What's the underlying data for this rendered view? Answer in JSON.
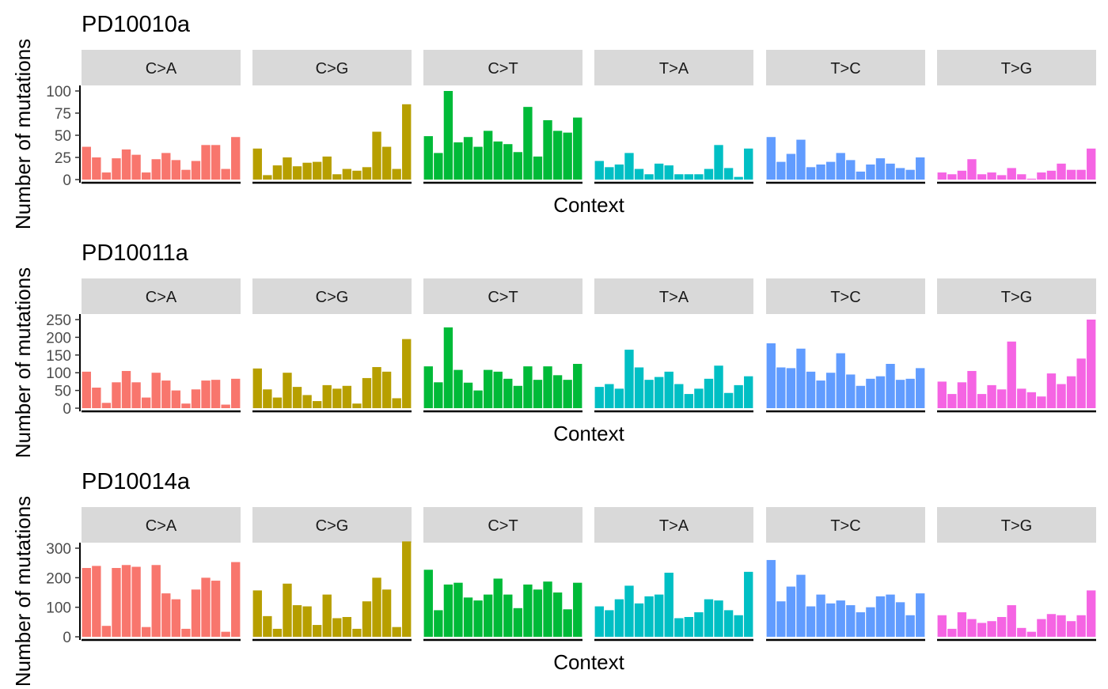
{
  "chart_data": [
    {
      "type": "bar",
      "title": "PD10010a",
      "xlabel": "Context",
      "ylabel": "Number of mutations",
      "ylim": [
        0,
        110
      ],
      "yticks": [
        0,
        25,
        50,
        75,
        100
      ],
      "grid": false,
      "legend": "none",
      "facets": [
        {
          "name": "C>A",
          "color": "#F8766D",
          "values": [
            37,
            25,
            8,
            24,
            34,
            28,
            8,
            23,
            30,
            22,
            11,
            21,
            39,
            39,
            12,
            48
          ]
        },
        {
          "name": "C>G",
          "color": "#B79F00",
          "values": [
            35,
            5,
            16,
            25,
            15,
            19,
            20,
            26,
            6,
            12,
            10,
            14,
            54,
            37,
            12,
            85
          ]
        },
        {
          "name": "C>T",
          "color": "#00BA38",
          "values": [
            49,
            30,
            100,
            42,
            48,
            37,
            55,
            43,
            40,
            31,
            82,
            26,
            67,
            55,
            53,
            70
          ]
        },
        {
          "name": "T>A",
          "color": "#00BFC4",
          "values": [
            21,
            14,
            17,
            30,
            12,
            6,
            18,
            16,
            6,
            6,
            6,
            12,
            39,
            13,
            3,
            35
          ]
        },
        {
          "name": "T>C",
          "color": "#619CFF",
          "values": [
            48,
            20,
            29,
            45,
            14,
            17,
            20,
            30,
            22,
            9,
            17,
            24,
            18,
            13,
            11,
            25
          ]
        },
        {
          "name": "T>G",
          "color": "#F564E3",
          "values": [
            8,
            6,
            10,
            23,
            6,
            8,
            5,
            13,
            6,
            1,
            8,
            10,
            18,
            11,
            11,
            35
          ]
        }
      ]
    },
    {
      "type": "bar",
      "title": "PD10011a",
      "xlabel": "Context",
      "ylabel": "Number of mutations",
      "ylim": [
        0,
        260
      ],
      "yticks": [
        0,
        50,
        100,
        150,
        200,
        250
      ],
      "grid": false,
      "legend": "none",
      "facets": [
        {
          "name": "C>A",
          "color": "#F8766D",
          "values": [
            103,
            58,
            15,
            73,
            105,
            73,
            30,
            100,
            78,
            50,
            13,
            53,
            78,
            80,
            10,
            83
          ]
        },
        {
          "name": "C>G",
          "color": "#B79F00",
          "values": [
            112,
            53,
            30,
            100,
            60,
            37,
            20,
            65,
            55,
            63,
            13,
            85,
            116,
            103,
            28,
            195
          ]
        },
        {
          "name": "C>T",
          "color": "#00BA38",
          "values": [
            118,
            73,
            228,
            108,
            72,
            50,
            108,
            103,
            83,
            63,
            118,
            80,
            118,
            93,
            80,
            125
          ]
        },
        {
          "name": "T>A",
          "color": "#00BFC4",
          "values": [
            60,
            68,
            55,
            165,
            115,
            80,
            88,
            103,
            68,
            40,
            55,
            83,
            120,
            43,
            65,
            90
          ]
        },
        {
          "name": "T>C",
          "color": "#619CFF",
          "values": [
            183,
            115,
            113,
            168,
            103,
            78,
            100,
            155,
            95,
            63,
            83,
            90,
            125,
            80,
            83,
            113
          ]
        },
        {
          "name": "T>G",
          "color": "#F564E3",
          "values": [
            75,
            40,
            73,
            105,
            40,
            65,
            53,
            188,
            55,
            45,
            33,
            98,
            68,
            90,
            140,
            250
          ]
        }
      ]
    },
    {
      "type": "bar",
      "title": "PD10014a",
      "xlabel": "Context",
      "ylabel": "Number of mutations",
      "ylim": [
        0,
        340
      ],
      "yticks": [
        0,
        100,
        200,
        300
      ],
      "grid": false,
      "legend": "none",
      "facets": [
        {
          "name": "C>A",
          "color": "#F8766D",
          "values": [
            233,
            240,
            37,
            233,
            243,
            237,
            33,
            243,
            147,
            127,
            27,
            160,
            200,
            190,
            17,
            253
          ]
        },
        {
          "name": "C>G",
          "color": "#B79F00",
          "values": [
            157,
            70,
            27,
            180,
            107,
            103,
            40,
            143,
            63,
            67,
            27,
            120,
            200,
            160,
            33,
            323
          ]
        },
        {
          "name": "C>T",
          "color": "#00BA38",
          "values": [
            227,
            90,
            177,
            183,
            133,
            123,
            143,
            197,
            143,
            97,
            177,
            160,
            187,
            150,
            93,
            183
          ]
        },
        {
          "name": "T>A",
          "color": "#00BFC4",
          "values": [
            103,
            90,
            127,
            173,
            113,
            137,
            143,
            217,
            63,
            67,
            83,
            127,
            123,
            90,
            73,
            220
          ]
        },
        {
          "name": "T>C",
          "color": "#619CFF",
          "values": [
            260,
            120,
            170,
            210,
            103,
            143,
            113,
            123,
            107,
            83,
            100,
            137,
            143,
            117,
            73,
            147
          ]
        },
        {
          "name": "T>G",
          "color": "#F564E3",
          "values": [
            73,
            27,
            83,
            60,
            47,
            53,
            67,
            107,
            30,
            17,
            60,
            77,
            73,
            53,
            73,
            157
          ]
        }
      ]
    }
  ]
}
